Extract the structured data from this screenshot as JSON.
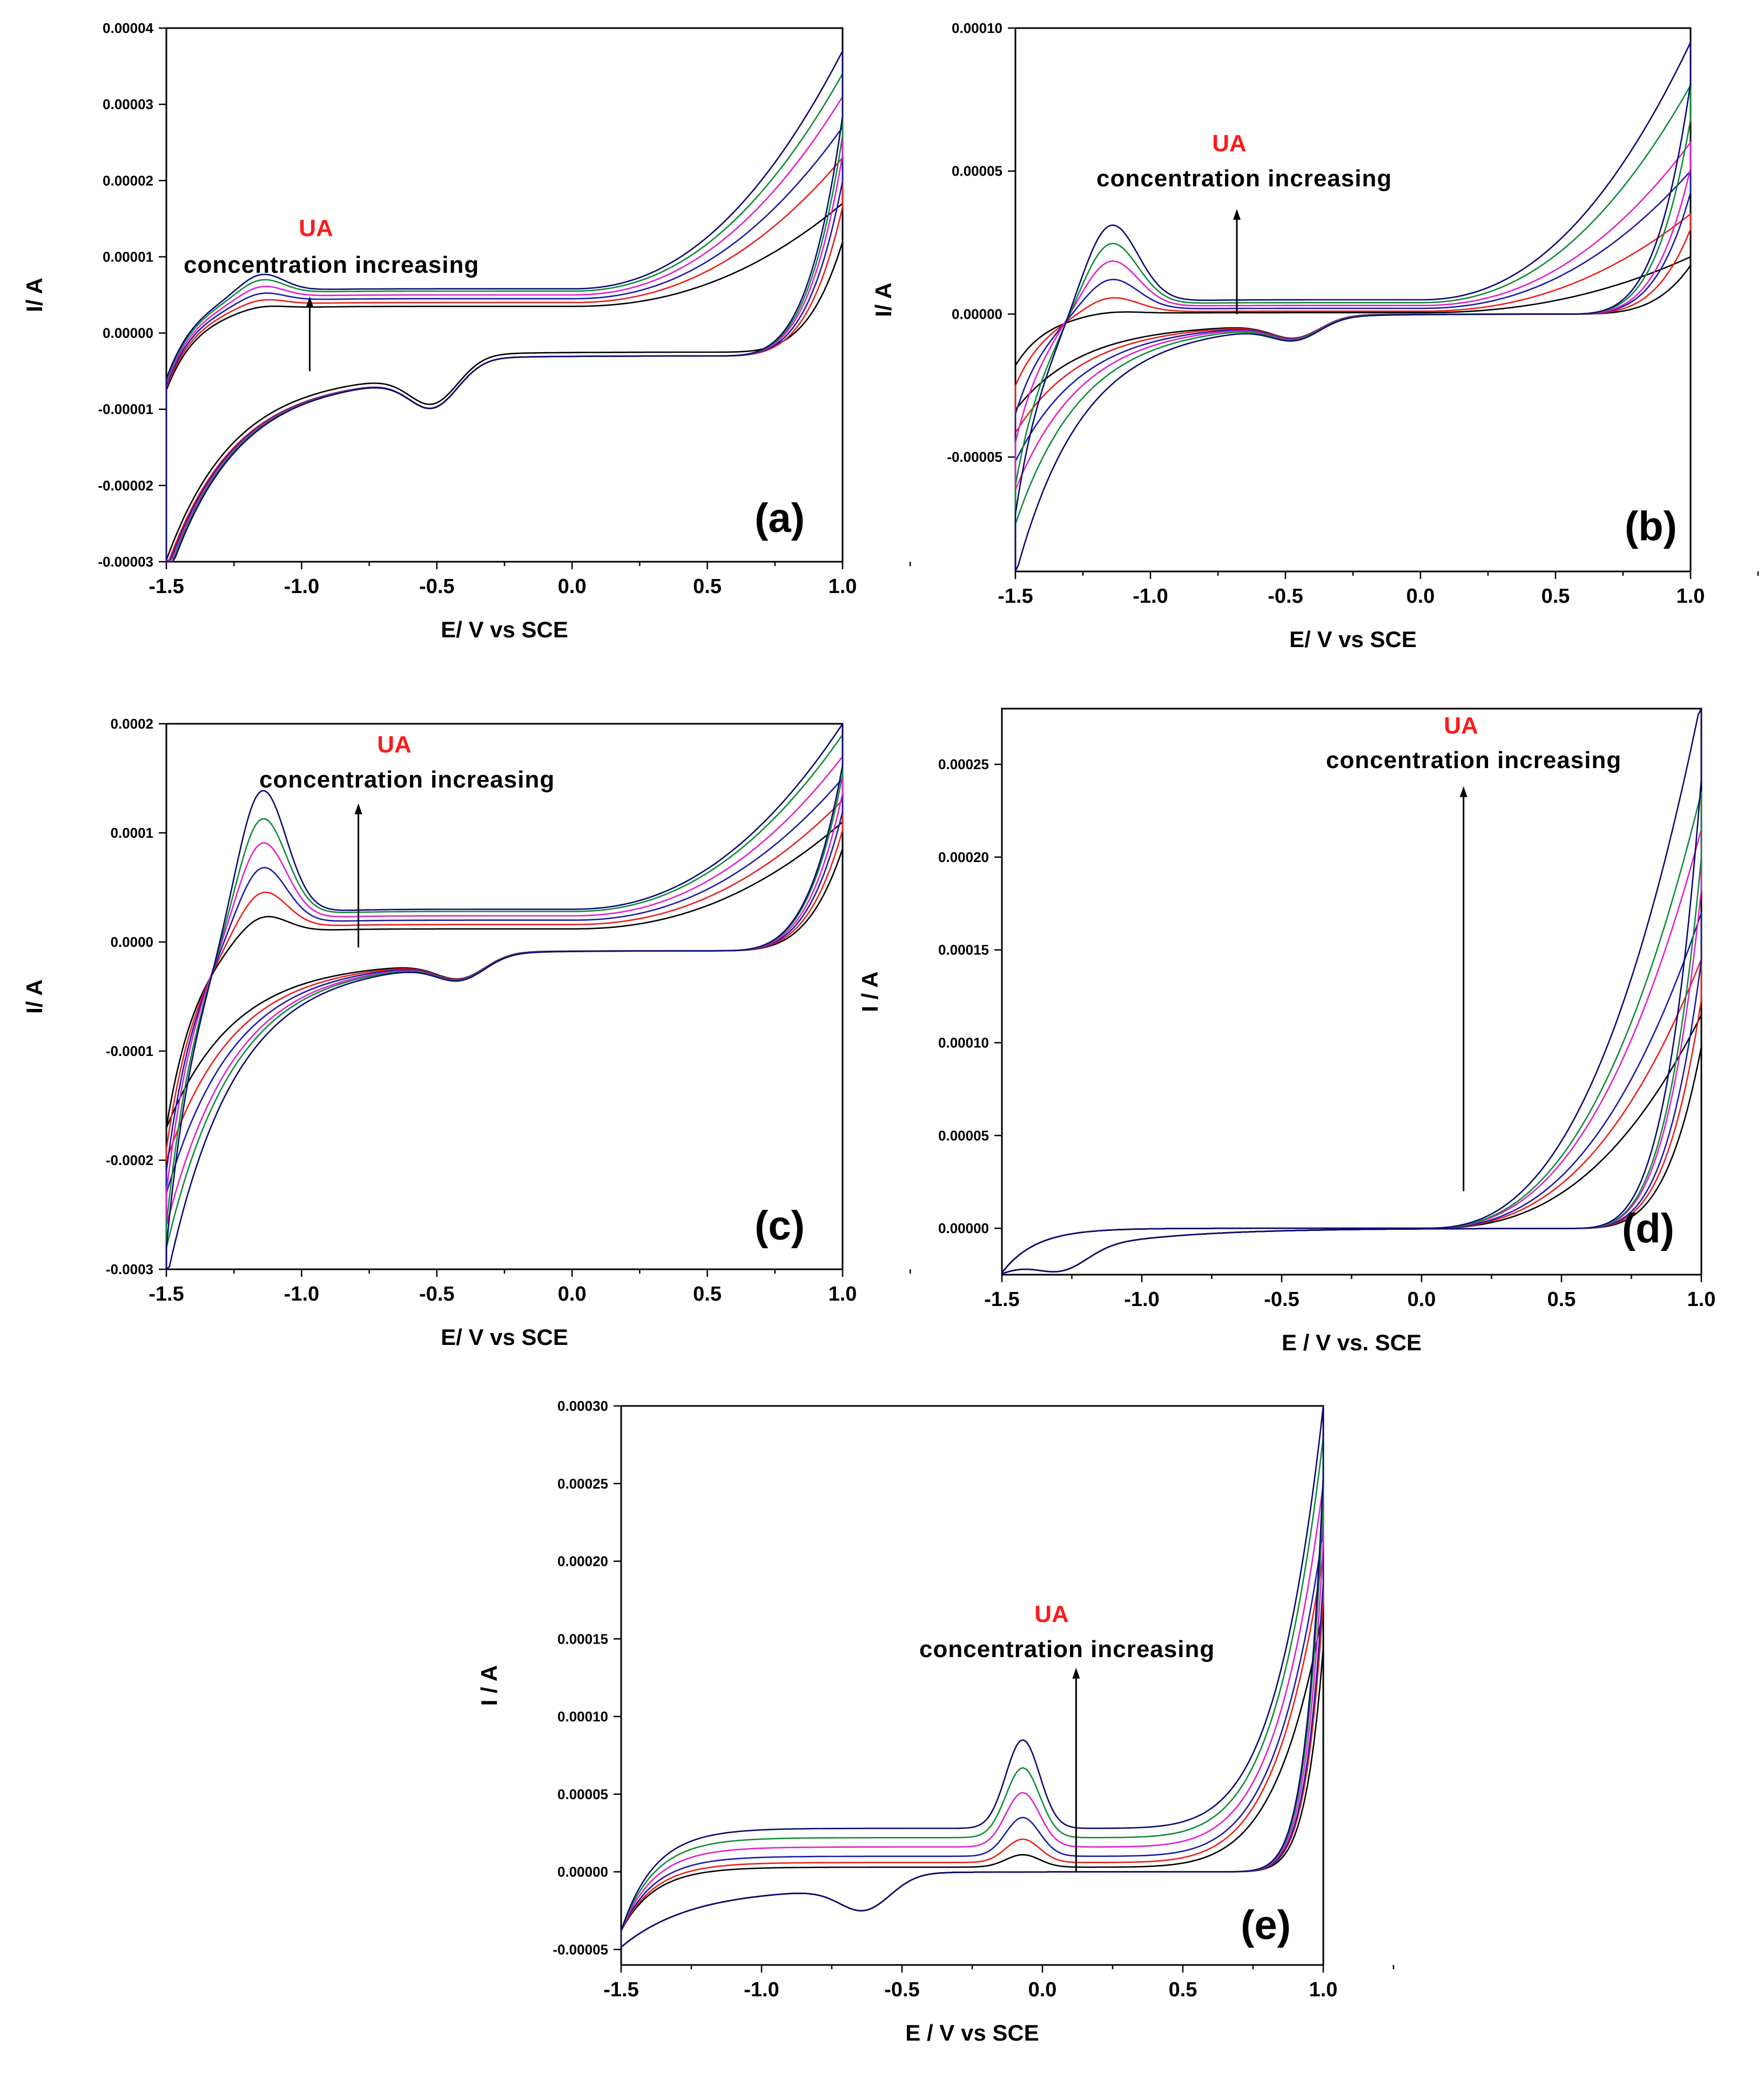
{
  "figure": {
    "colors": {
      "ua_label": "#ff1a1a",
      "series": [
        "#000000",
        "#e8201c",
        "#1a1aa8",
        "#e020c8",
        "#108a3a",
        "#0a0a70"
      ]
    }
  },
  "chart_data": [
    {
      "type": "line",
      "panel_label": "(a)",
      "xlabel": "E/ V vs SCE",
      "ylabel": "I/ A",
      "xlim": [
        -1.5,
        1.0
      ],
      "ylim": [
        -3e-05,
        4e-05
      ],
      "x_ticks": [
        "-1.5",
        "-1.0",
        "-0.5",
        "0.0",
        "0.5",
        "1.0"
      ],
      "y_ticks": [
        "-0.00003",
        "-0.00002",
        "-0.00001",
        "0.00000",
        "0.00001",
        "0.00002",
        "0.00003",
        "0.00004"
      ],
      "annotation": {
        "ua": "UA",
        "text": "concentration increasing",
        "arrow_x": -0.97,
        "arrow_from": -5e-06,
        "arrow_to": 4.5e-06
      },
      "series_count": 6,
      "model": {
        "ox_peak_e": -1.15,
        "ox_peak_h": [
          5e-07,
          9e-07,
          1.3e-06,
          1.7e-06,
          2.1e-06,
          2.5e-06
        ],
        "ox_peak_w": 0.08,
        "anodic_start": [
          -7.5e-06,
          -7.2e-06,
          -6.9e-06,
          -6.6e-06,
          -6.3e-06,
          -6e-06
        ],
        "anodic_mid": [
          3.5e-06,
          4e-06,
          4.5e-06,
          5e-06,
          5.5e-06,
          5.8e-06
        ],
        "anodic_end": [
          1.7e-05,
          2.3e-05,
          2.7e-05,
          3.1e-05,
          3.4e-05,
          3.7e-05
        ],
        "cath_end": [
          -2.7e-05,
          -2.8e-05,
          -2.85e-05,
          -2.9e-05,
          -2.95e-05,
          -3e-05
        ],
        "cath_mid": [
          -2.5e-06,
          -3e-06,
          -3e-06,
          -3e-06,
          -3e-06,
          -3e-06
        ],
        "cath_wave": -8e-06,
        "cath_wave_e": -0.5
      }
    },
    {
      "type": "line",
      "panel_label": "(b)",
      "xlabel": "E/ V vs SCE",
      "ylabel": "I/ A",
      "xlim": [
        -1.5,
        1.0
      ],
      "ylim": [
        -9e-05,
        0.0001
      ],
      "x_ticks": [
        "-1.5",
        "-1.0",
        "-0.5",
        "0.0",
        "0.5",
        "1.0"
      ],
      "y_ticks": [
        "-0.00005",
        "0.00000",
        "0.00005",
        "0.00010"
      ],
      "y_tick_values": [
        -5e-05,
        0.0,
        5e-05,
        0.0001
      ],
      "annotation": {
        "ua": "UA",
        "text": "concentration increasing",
        "arrow_x": -0.68,
        "arrow_from": 0.0,
        "arrow_to": 3.6e-05
      },
      "series_count": 6,
      "model": {
        "ox_peak_e": -1.15,
        "ox_peak_h": [
          1e-06,
          6e-06,
          1.2e-05,
          1.8e-05,
          2.4e-05,
          3e-05
        ],
        "ox_peak_w": 0.1,
        "anodic_start": [
          -1.8e-05,
          -2.5e-05,
          -3.5e-05,
          -4.5e-05,
          -6e-05,
          -7e-05
        ],
        "anodic_mid": [
          5e-07,
          1e-06,
          2e-06,
          3e-06,
          4e-06,
          5e-06
        ],
        "anodic_end": [
          2e-05,
          3.5e-05,
          5e-05,
          6e-05,
          8e-05,
          9.5e-05
        ],
        "cath_end": [
          -3e-05,
          -3.8e-05,
          -4.8e-05,
          -5.8e-05,
          -7e-05,
          -8.8e-05
        ],
        "cath_mid": [
          0.0,
          0.0,
          0.0,
          0.0,
          0.0,
          0.0
        ],
        "cath_wave": -1e-05,
        "cath_wave_e": -0.45
      }
    },
    {
      "type": "line",
      "panel_label": "(c)",
      "xlabel": "E/ V vs SCE",
      "ylabel": "I/ A",
      "xlim": [
        -1.5,
        1.0
      ],
      "ylim": [
        -0.0003,
        0.0002
      ],
      "x_ticks": [
        "-1.5",
        "-1.0",
        "-0.5",
        "0.0",
        "0.5",
        "1.0"
      ],
      "y_ticks": [
        "-0.0003",
        "-0.0002",
        "-0.0001",
        "0.0000",
        "0.0001",
        "0.0002"
      ],
      "y_tick_values": [
        -0.0003,
        -0.0002,
        -0.0001,
        0.0,
        0.0001,
        0.0002
      ],
      "annotation": {
        "ua": "UA",
        "text": "concentration increasing",
        "arrow_x": -0.79,
        "arrow_from": -5e-06,
        "arrow_to": 0.000125
      },
      "series_count": 6,
      "model": {
        "ox_peak_e": -1.15,
        "ox_peak_h": [
          2e-05,
          4e-05,
          6e-05,
          8e-05,
          0.0001,
          0.000125
        ],
        "ox_peak_w": 0.09,
        "anodic_start": [
          -0.00017,
          -0.00019,
          -0.00021,
          -0.00023,
          -0.00026,
          -0.00028
        ],
        "anodic_mid": [
          1.2e-05,
          1.6e-05,
          2e-05,
          2.4e-05,
          2.8e-05,
          3e-05
        ],
        "anodic_end": [
          0.00011,
          0.00013,
          0.00015,
          0.00017,
          0.00019,
          0.0002
        ],
        "cath_end": [
          -0.00016,
          -0.00019,
          -0.00022,
          -0.00025,
          -0.00027,
          -0.0003
        ],
        "cath_mid": [
          -8e-06,
          -8e-06,
          -8e-06,
          -8e-06,
          -8e-06,
          -8e-06
        ],
        "cath_wave": -3e-05,
        "cath_wave_e": -0.4
      }
    },
    {
      "type": "line",
      "panel_label": "(d)",
      "xlabel": "E / V vs. SCE",
      "ylabel": "I / A",
      "xlim": [
        -1.5,
        1.0
      ],
      "ylim": [
        -2.5e-05,
        0.00028
      ],
      "x_ticks": [
        "-1.5",
        "-1.0",
        "-0.5",
        "0.0",
        "0.5",
        "1.0"
      ],
      "y_ticks": [
        "0.00000",
        "0.00005",
        "0.00010",
        "0.00015",
        "0.00020",
        "0.00025"
      ],
      "y_tick_values": [
        0.0,
        5e-05,
        0.0001,
        0.00015,
        0.0002,
        0.00025
      ],
      "annotation": {
        "ua": "UA",
        "text": "concentration increasing",
        "arrow_x": 0.15,
        "arrow_from": 2e-05,
        "arrow_to": 0.000237
      },
      "series_count": 6,
      "model": {
        "ox_peak_e": -1.3,
        "ox_peak_h": [
          0,
          0,
          0,
          0,
          0,
          0
        ],
        "ox_peak_w": 0.08,
        "anodic_start": [
          -2.4e-05,
          -2.4e-05,
          -2.4e-05,
          -2.4e-05,
          -2.4e-05,
          -2.4e-05
        ],
        "anodic_mid": [
          0.0,
          0.0,
          0.0,
          0.0,
          0.0,
          0.0
        ],
        "anodic_end": [
          0.000115,
          0.000145,
          0.00017,
          0.000215,
          0.000235,
          0.000285
        ],
        "cath_end": [
          -2.4e-05,
          -2.4e-05,
          -2.4e-05,
          -2.4e-05,
          -2.4e-05,
          -2.4e-05
        ],
        "cath_mid": [
          0.0,
          0.0,
          0.0,
          0.0,
          0.0,
          0.0
        ],
        "cath_wave": -2e-05,
        "cath_wave_e": -1.28
      }
    },
    {
      "type": "line",
      "panel_label": "(e)",
      "xlabel": "E / V vs SCE",
      "ylabel": "I / A",
      "xlim": [
        -1.5,
        1.0
      ],
      "ylim": [
        -6e-05,
        0.0003
      ],
      "x_ticks": [
        "-1.5",
        "-1.0",
        "-0.5",
        "0.0",
        "0.5",
        "1.0"
      ],
      "y_ticks": [
        "-0.00005",
        "0.00000",
        "0.00005",
        "0.00010",
        "0.00015",
        "0.00020",
        "0.00025",
        "0.00030"
      ],
      "y_tick_values": [
        -5e-05,
        0.0,
        5e-05,
        0.0001,
        0.00015,
        0.0002,
        0.00025,
        0.0003
      ],
      "annotation": {
        "ua": "UA",
        "text": "concentration increasing",
        "arrow_x": 0.12,
        "arrow_from": 0.0,
        "arrow_to": 0.00013
      },
      "series_count": 6,
      "model": {
        "ox_peak_e": -0.07,
        "ox_peak_h": [
          8e-06,
          1.5e-05,
          2.5e-05,
          3.5e-05,
          4.5e-05,
          5.7e-05
        ],
        "ox_peak_w": 0.06,
        "anodic_start": [
          -3.8e-05,
          -3.8e-05,
          -3.8e-05,
          -3.8e-05,
          -3.8e-05,
          -3.8e-05
        ],
        "anodic_mid": [
          3e-06,
          6e-06,
          1e-05,
          1.6e-05,
          2.2e-05,
          2.8e-05
        ],
        "anodic_end": [
          0.00017,
          0.000205,
          0.00022,
          0.00025,
          0.00028,
          0.0003
        ],
        "cath_end": [
          -3.8e-05,
          -3.8e-05,
          -3.8e-05,
          -3.8e-05,
          -3.8e-05,
          -3.8e-05
        ],
        "cath_mid": [
          0.0,
          0.0,
          0.0,
          0.0,
          0.0,
          0.0
        ],
        "cath_wave": -3e-05,
        "cath_wave_e": -0.62
      }
    }
  ]
}
